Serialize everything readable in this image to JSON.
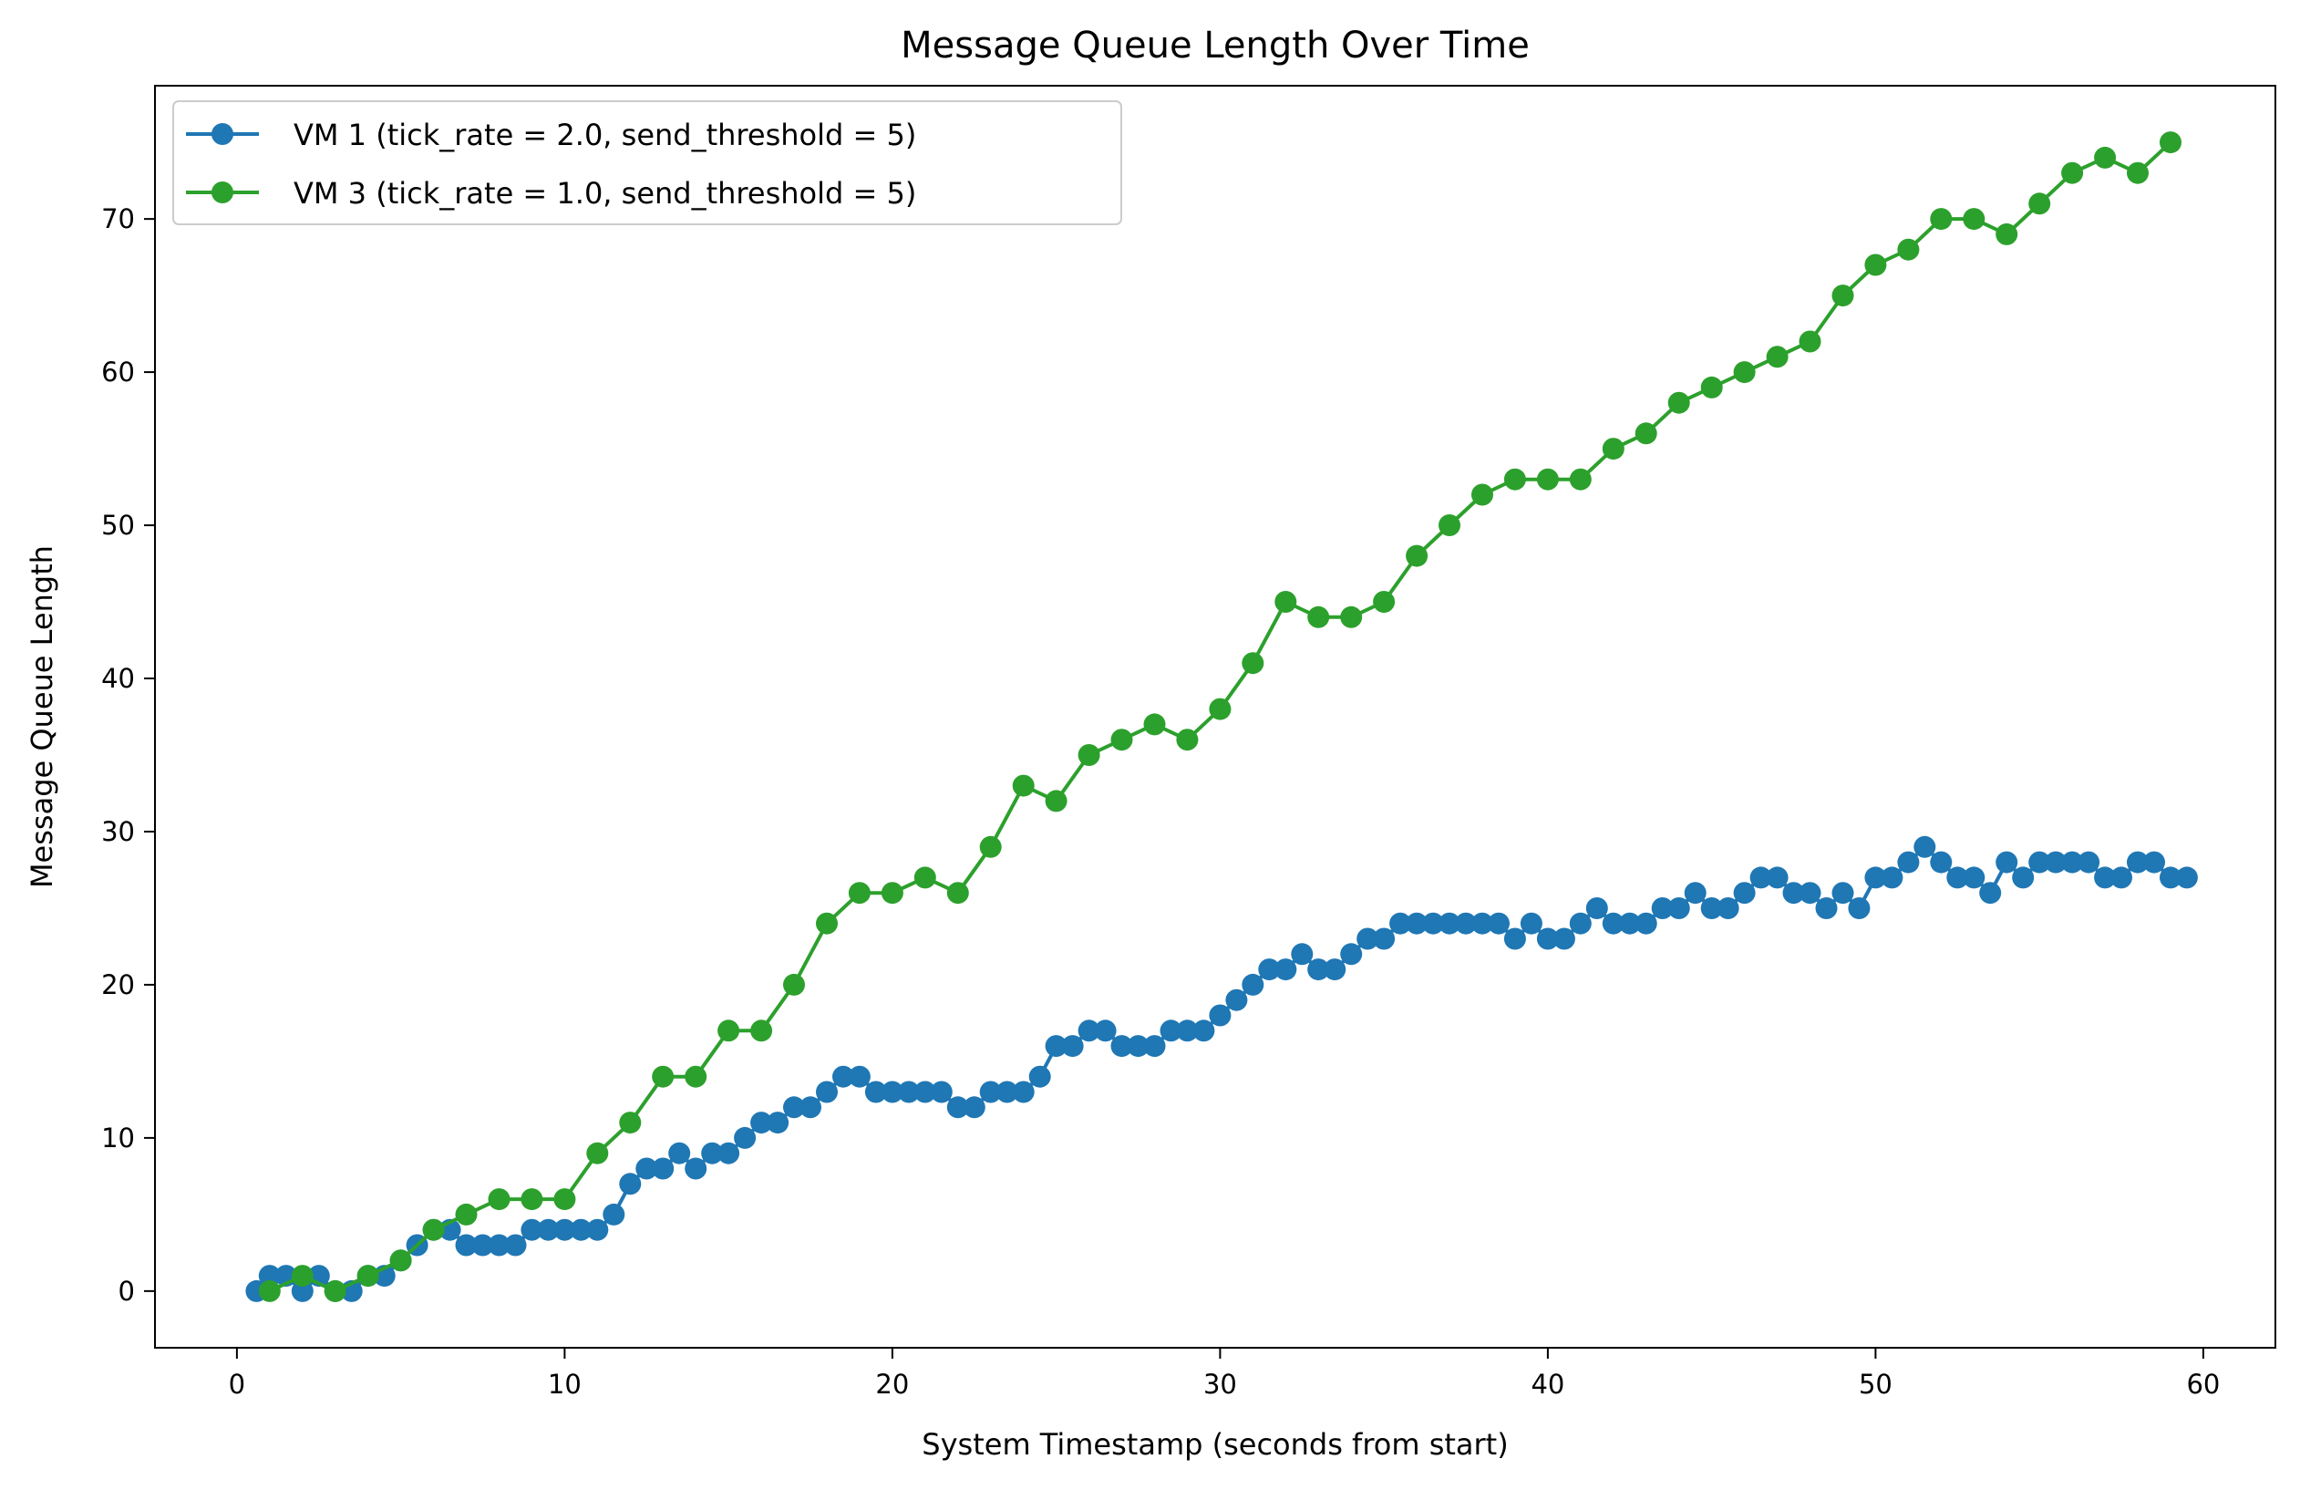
{
  "chart_data": {
    "type": "line",
    "title": "Message Queue Length Over Time",
    "xlabel": "System Timestamp (seconds from start)",
    "ylabel": "Message Queue Length",
    "xlim": [
      -2.5,
      62.2
    ],
    "ylim": [
      -3.7,
      78.7
    ],
    "xticks": [
      0,
      10,
      20,
      30,
      40,
      50,
      60
    ],
    "yticks": [
      0,
      10,
      20,
      30,
      40,
      50,
      60,
      70
    ],
    "grid": false,
    "legend_position": "top-left",
    "markers": "circle",
    "series": [
      {
        "name": "VM 1 (tick_rate = 2.0, send_threshold = 5)",
        "color": "#1f77b4",
        "points": [
          [
            0.6,
            0
          ],
          [
            1.0,
            1
          ],
          [
            1.5,
            1
          ],
          [
            2.0,
            0
          ],
          [
            2.5,
            1
          ],
          [
            3.0,
            0
          ],
          [
            3.5,
            0
          ],
          [
            4.0,
            1
          ],
          [
            4.5,
            1
          ],
          [
            5.0,
            2
          ],
          [
            5.5,
            3
          ],
          [
            6.0,
            4
          ],
          [
            6.5,
            4
          ],
          [
            7.0,
            3
          ],
          [
            7.5,
            3
          ],
          [
            8.0,
            3
          ],
          [
            8.5,
            3
          ],
          [
            9.0,
            4
          ],
          [
            9.5,
            4
          ],
          [
            10.0,
            4
          ],
          [
            10.5,
            4
          ],
          [
            11.0,
            4
          ],
          [
            11.5,
            5
          ],
          [
            12.0,
            7
          ],
          [
            12.5,
            8
          ],
          [
            13.0,
            8
          ],
          [
            13.5,
            9
          ],
          [
            14.0,
            8
          ],
          [
            14.5,
            9
          ],
          [
            15.0,
            9
          ],
          [
            15.5,
            10
          ],
          [
            16.0,
            11
          ],
          [
            16.5,
            11
          ],
          [
            17.0,
            12
          ],
          [
            17.5,
            12
          ],
          [
            18.0,
            13
          ],
          [
            18.5,
            14
          ],
          [
            19.0,
            14
          ],
          [
            19.5,
            13
          ],
          [
            20.0,
            13
          ],
          [
            20.5,
            13
          ],
          [
            21.0,
            13
          ],
          [
            21.5,
            13
          ],
          [
            22.0,
            12
          ],
          [
            22.5,
            12
          ],
          [
            23.0,
            13
          ],
          [
            23.5,
            13
          ],
          [
            24.0,
            13
          ],
          [
            24.5,
            14
          ],
          [
            25.0,
            16
          ],
          [
            25.5,
            16
          ],
          [
            26.0,
            17
          ],
          [
            26.5,
            17
          ],
          [
            27.0,
            16
          ],
          [
            27.5,
            16
          ],
          [
            28.0,
            16
          ],
          [
            28.5,
            17
          ],
          [
            29.0,
            17
          ],
          [
            29.5,
            17
          ],
          [
            30.0,
            18
          ],
          [
            30.5,
            19
          ],
          [
            31.0,
            20
          ],
          [
            31.5,
            21
          ],
          [
            32.0,
            21
          ],
          [
            32.5,
            22
          ],
          [
            33.0,
            21
          ],
          [
            33.5,
            21
          ],
          [
            34.0,
            22
          ],
          [
            34.5,
            23
          ],
          [
            35.0,
            23
          ],
          [
            35.5,
            24
          ],
          [
            36.0,
            24
          ],
          [
            36.5,
            24
          ],
          [
            37.0,
            24
          ],
          [
            37.5,
            24
          ],
          [
            38.0,
            24
          ],
          [
            38.5,
            24
          ],
          [
            39.0,
            23
          ],
          [
            39.5,
            24
          ],
          [
            40.0,
            23
          ],
          [
            40.5,
            23
          ],
          [
            41.0,
            24
          ],
          [
            41.5,
            25
          ],
          [
            42.0,
            24
          ],
          [
            42.5,
            24
          ],
          [
            43.0,
            24
          ],
          [
            43.5,
            25
          ],
          [
            44.0,
            25
          ],
          [
            44.5,
            26
          ],
          [
            45.0,
            25
          ],
          [
            45.5,
            25
          ],
          [
            46.0,
            26
          ],
          [
            46.5,
            27
          ],
          [
            47.0,
            27
          ],
          [
            47.5,
            26
          ],
          [
            48.0,
            26
          ],
          [
            48.5,
            25
          ],
          [
            49.0,
            26
          ],
          [
            49.5,
            25
          ],
          [
            50.0,
            27
          ],
          [
            50.5,
            27
          ],
          [
            51.0,
            28
          ],
          [
            51.5,
            29
          ],
          [
            52.0,
            28
          ],
          [
            52.5,
            27
          ],
          [
            53.0,
            27
          ],
          [
            53.5,
            26
          ],
          [
            54.0,
            28
          ],
          [
            54.5,
            27
          ],
          [
            55.0,
            28
          ],
          [
            55.5,
            28
          ],
          [
            56.0,
            28
          ],
          [
            56.5,
            28
          ],
          [
            57.0,
            27
          ],
          [
            57.5,
            27
          ],
          [
            58.0,
            28
          ],
          [
            58.5,
            28
          ],
          [
            59.0,
            27
          ],
          [
            59.5,
            27
          ]
        ]
      },
      {
        "name": "VM 3 (tick_rate = 1.0, send_threshold = 5)",
        "color": "#2ca02c",
        "points": [
          [
            1.0,
            0
          ],
          [
            2.0,
            1
          ],
          [
            3.0,
            0
          ],
          [
            4.0,
            1
          ],
          [
            5.0,
            2
          ],
          [
            6.0,
            4
          ],
          [
            7.0,
            5
          ],
          [
            8.0,
            6
          ],
          [
            9.0,
            6
          ],
          [
            10.0,
            6
          ],
          [
            11.0,
            9
          ],
          [
            12.0,
            11
          ],
          [
            13.0,
            14
          ],
          [
            14.0,
            14
          ],
          [
            15.0,
            17
          ],
          [
            16.0,
            17
          ],
          [
            17.0,
            20
          ],
          [
            18.0,
            24
          ],
          [
            19.0,
            26
          ],
          [
            20.0,
            26
          ],
          [
            21.0,
            27
          ],
          [
            22.0,
            26
          ],
          [
            23.0,
            29
          ],
          [
            24.0,
            33
          ],
          [
            25.0,
            32
          ],
          [
            26.0,
            35
          ],
          [
            27.0,
            36
          ],
          [
            28.0,
            37
          ],
          [
            29.0,
            36
          ],
          [
            30.0,
            38
          ],
          [
            31.0,
            41
          ],
          [
            32.0,
            45
          ],
          [
            33.0,
            44
          ],
          [
            34.0,
            44
          ],
          [
            35.0,
            45
          ],
          [
            36.0,
            48
          ],
          [
            37.0,
            50
          ],
          [
            38.0,
            52
          ],
          [
            39.0,
            53
          ],
          [
            40.0,
            53
          ],
          [
            41.0,
            53
          ],
          [
            42.0,
            55
          ],
          [
            43.0,
            56
          ],
          [
            44.0,
            58
          ],
          [
            45.0,
            59
          ],
          [
            46.0,
            60
          ],
          [
            47.0,
            61
          ],
          [
            48.0,
            62
          ],
          [
            49.0,
            65
          ],
          [
            50.0,
            67
          ],
          [
            51.0,
            68
          ],
          [
            52.0,
            70
          ],
          [
            53.0,
            70
          ],
          [
            54.0,
            69
          ],
          [
            55.0,
            71
          ],
          [
            56.0,
            73
          ],
          [
            57.0,
            74
          ],
          [
            58.0,
            73
          ],
          [
            59.0,
            75
          ]
        ]
      }
    ]
  }
}
